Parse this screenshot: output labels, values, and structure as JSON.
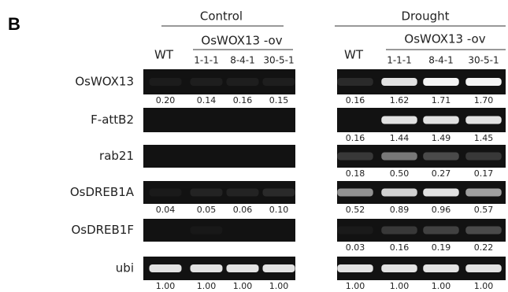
{
  "panel": "B",
  "groups": [
    {
      "title": "Control",
      "wt": "WT",
      "ov": "OsWOX13 -ov",
      "lanes": [
        "1-1-1",
        "8-4-1",
        "30-5-1"
      ]
    },
    {
      "title": "Drought",
      "wt": "WT",
      "ov": "OsWOX13 -ov",
      "lanes": [
        "1-1-1",
        "8-4-1",
        "30-5-1"
      ]
    }
  ],
  "rows": [
    {
      "label": "OsWOX13",
      "control": [
        "0.20",
        "0.14",
        "0.16",
        "0.15"
      ],
      "drought": [
        "0.16",
        "1.62",
        "1.71",
        "1.70"
      ]
    },
    {
      "label": "F-attB2",
      "drought": [
        "0.16",
        "1.44",
        "1.49",
        "1.45"
      ]
    },
    {
      "label": "rab21",
      "drought": [
        "0.18",
        "0.50",
        "0.27",
        "0.17"
      ]
    },
    {
      "label": "OsDREB1A",
      "control": [
        "0.04",
        "0.05",
        "0.06",
        "0.10"
      ],
      "drought": [
        "0.52",
        "0.89",
        "0.96",
        "0.57"
      ]
    },
    {
      "label": "OsDREB1F",
      "drought": [
        "0.03",
        "0.16",
        "0.19",
        "0.22"
      ]
    },
    {
      "label": "ubi",
      "control": [
        "1.00",
        "1.00",
        "1.00",
        "1.00"
      ],
      "drought": [
        "1.00",
        "1.00",
        "1.00",
        "1.00"
      ]
    }
  ]
}
